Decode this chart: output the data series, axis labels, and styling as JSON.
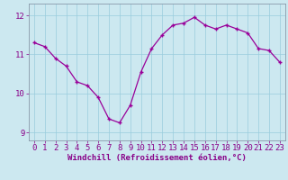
{
  "x": [
    0,
    1,
    2,
    3,
    4,
    5,
    6,
    7,
    8,
    9,
    10,
    11,
    12,
    13,
    14,
    15,
    16,
    17,
    18,
    19,
    20,
    21,
    22,
    23
  ],
  "y": [
    11.3,
    11.2,
    10.9,
    10.7,
    10.3,
    10.2,
    9.9,
    9.35,
    9.25,
    9.7,
    10.55,
    11.15,
    11.5,
    11.75,
    11.8,
    11.95,
    11.75,
    11.65,
    11.75,
    11.65,
    11.55,
    11.15,
    11.1,
    10.8
  ],
  "line_color": "#990099",
  "marker": "+",
  "marker_size": 3.5,
  "marker_lw": 1.0,
  "bg_color": "#cce8f0",
  "grid_color": "#99ccdd",
  "xlabel": "Windchill (Refroidissement éolien,°C)",
  "xlabel_fontsize": 6.5,
  "tick_fontsize": 6.5,
  "tick_color": "#880088",
  "line_width": 0.9,
  "ylim": [
    8.8,
    12.3
  ],
  "xlim": [
    -0.5,
    23.5
  ],
  "yticks": [
    9,
    10,
    11,
    12
  ],
  "xticks": [
    0,
    1,
    2,
    3,
    4,
    5,
    6,
    7,
    8,
    9,
    10,
    11,
    12,
    13,
    14,
    15,
    16,
    17,
    18,
    19,
    20,
    21,
    22,
    23
  ]
}
